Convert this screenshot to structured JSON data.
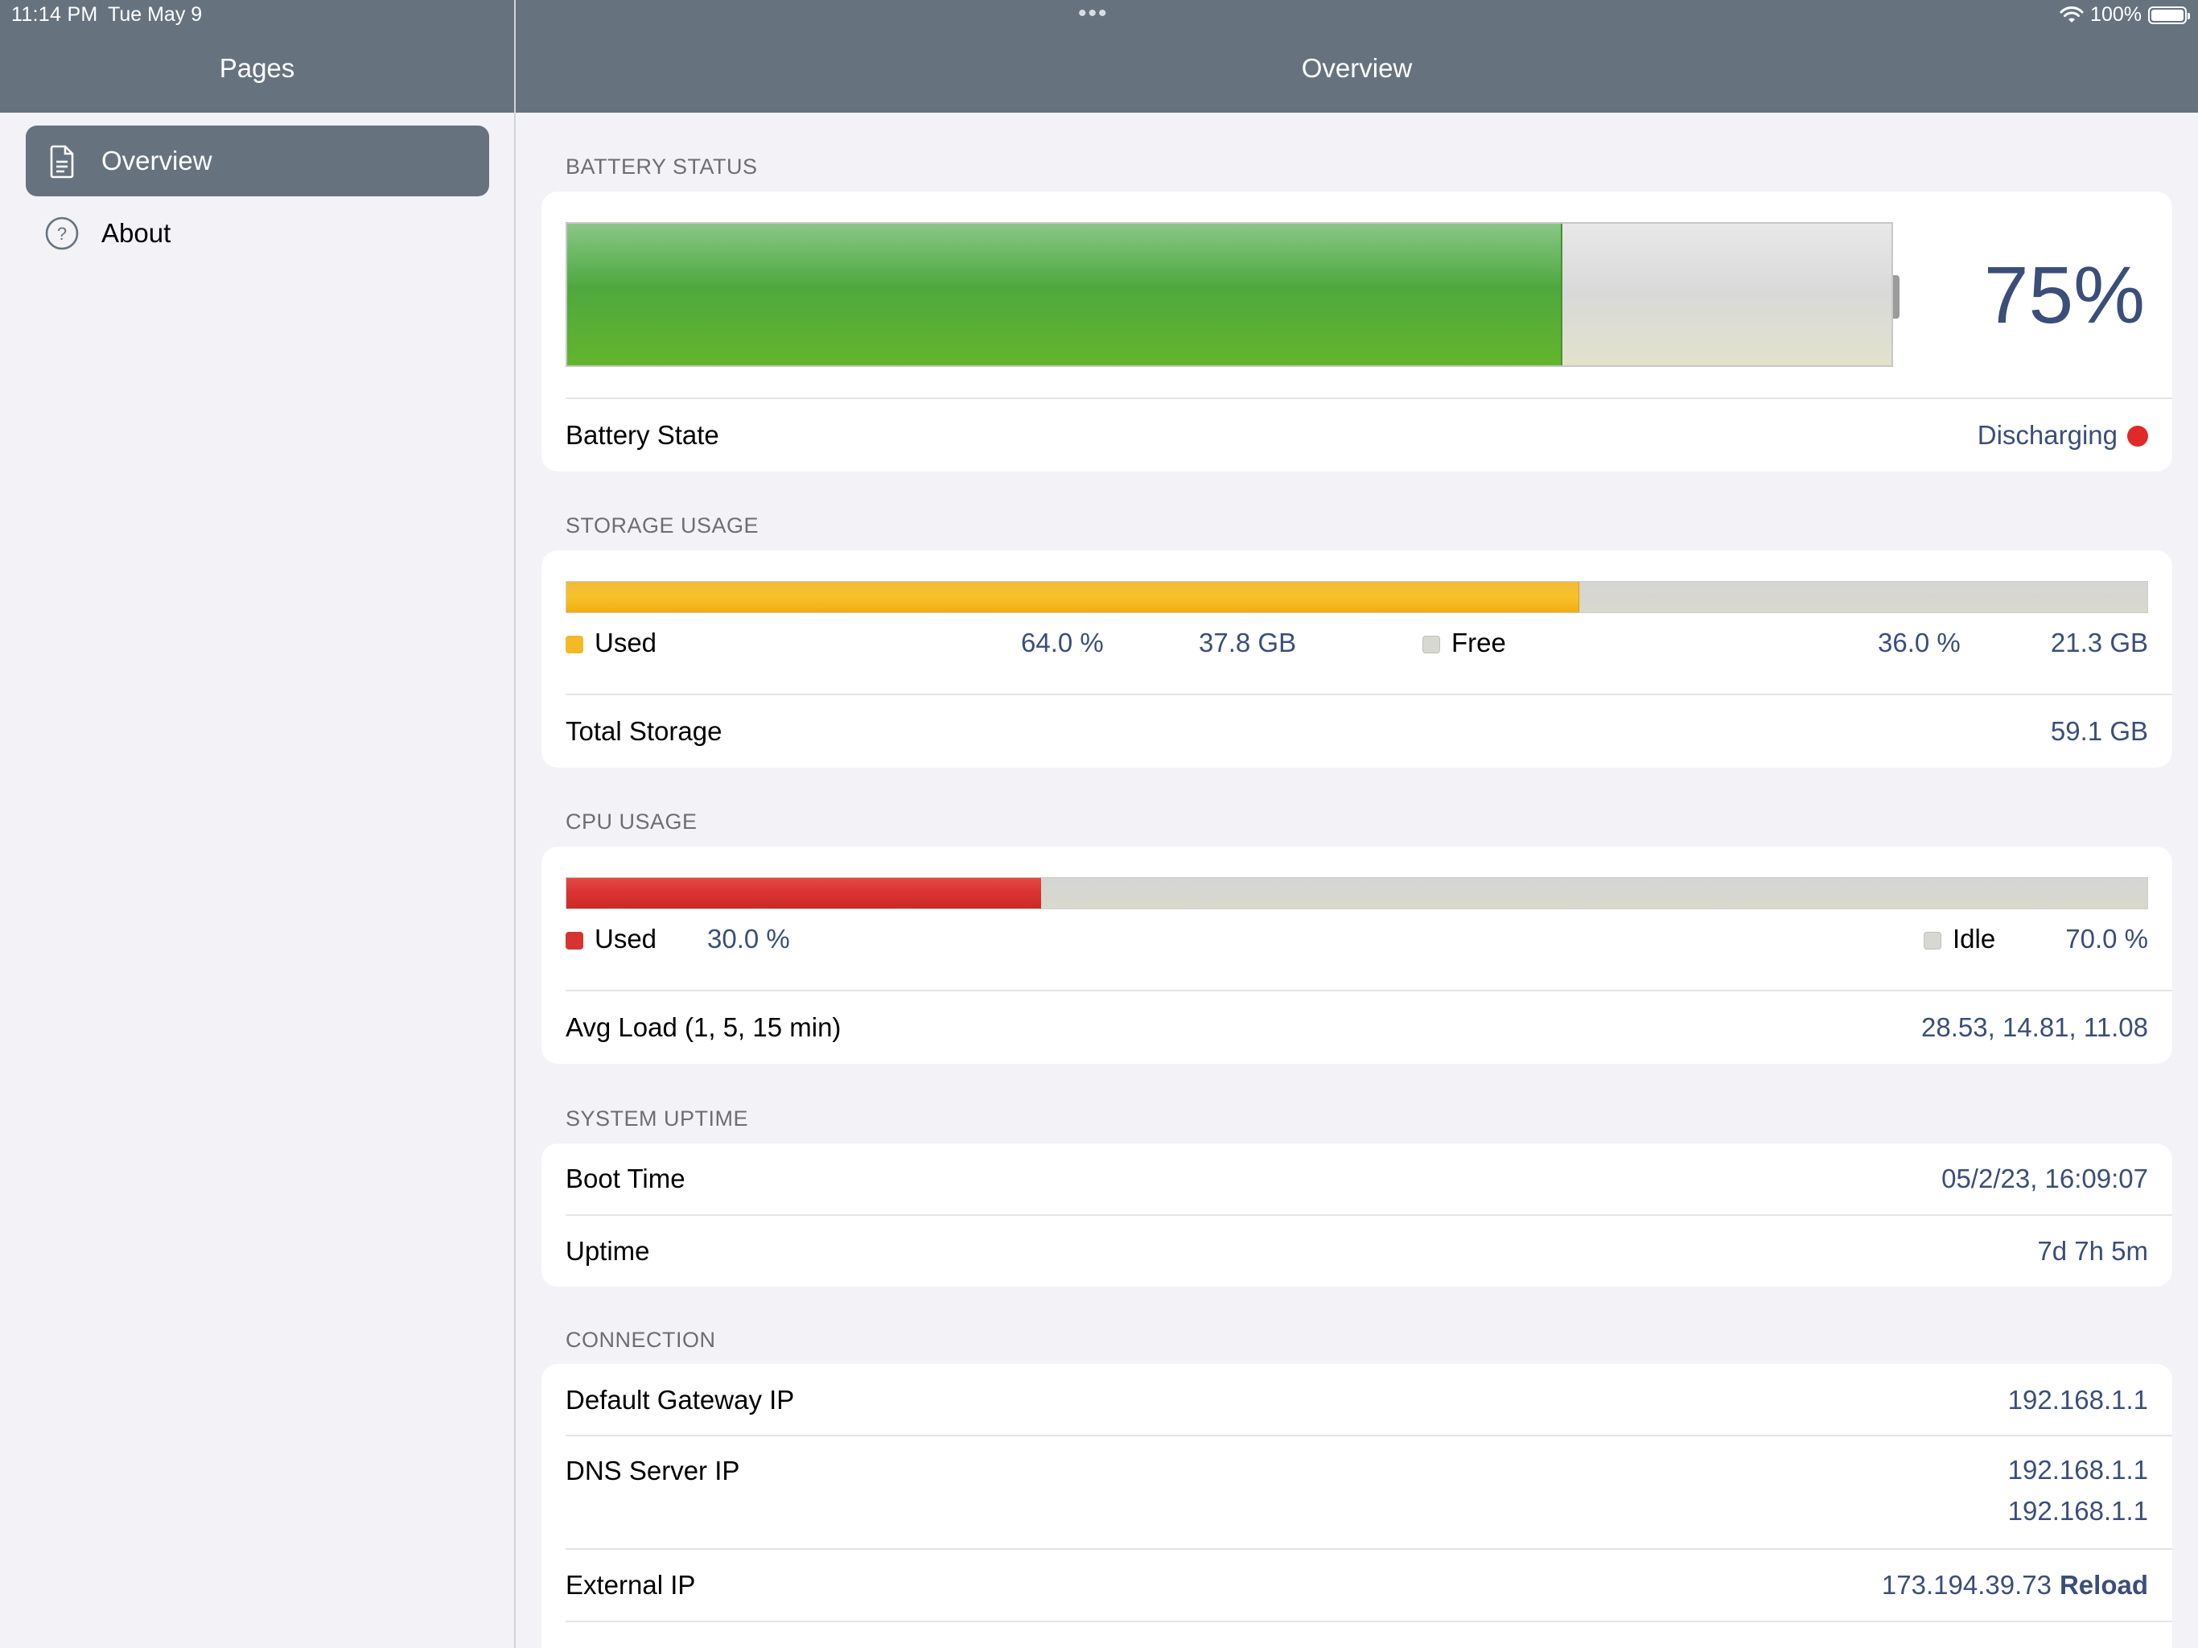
{
  "status_bar": {
    "time": "11:14 PM",
    "date": "Tue May 9",
    "multitask_dots": "•••",
    "battery_percent": "100%",
    "icons": [
      "wifi-icon",
      "battery-icon"
    ]
  },
  "sidebar": {
    "title": "Pages",
    "items": [
      {
        "label": "Overview",
        "icon": "document-icon",
        "selected": true
      },
      {
        "label": "About",
        "icon": "question-circle-icon",
        "selected": false
      }
    ]
  },
  "main": {
    "title": "Overview",
    "battery": {
      "header": "BATTERY STATUS",
      "percent_label": "75%",
      "level": 0.75,
      "state_label": "Battery State",
      "state_value": "Discharging",
      "state_color": "#e02a2a"
    },
    "storage": {
      "header": "STORAGE USAGE",
      "used_fraction": 0.64,
      "used_label": "Used",
      "used_percent": "64.0 %",
      "used_size": "37.8 GB",
      "free_label": "Free",
      "free_percent": "36.0 %",
      "free_size": "21.3 GB",
      "total_label": "Total Storage",
      "total_value": "59.1 GB"
    },
    "cpu": {
      "header": "CPU USAGE",
      "used_fraction": 0.3,
      "used_label": "Used",
      "used_percent": "30.0 %",
      "idle_label": "Idle",
      "idle_percent": "70.0 %",
      "load_label": "Avg Load (1, 5, 15 min)",
      "load_value": "28.53, 14.81, 11.08"
    },
    "uptime": {
      "header": "SYSTEM UPTIME",
      "boot_label": "Boot Time",
      "boot_value": "05/2/23, 16:09:07",
      "uptime_label": "Uptime",
      "uptime_value": "7d 7h 5m"
    },
    "connection": {
      "header": "CONNECTION",
      "gateway_label": "Default Gateway IP",
      "gateway_value": "192.168.1.1",
      "dns_label": "DNS Server IP",
      "dns_values": [
        "192.168.1.1",
        "192.168.1.1"
      ],
      "external_label": "External IP",
      "external_value": "173.194.39.73",
      "reload_label": "Reload"
    }
  },
  "colors": {
    "nav_bar": "#66737f",
    "value_text": "#3b4e7a",
    "storage_used": "#f5b827",
    "cpu_used": "#d83331",
    "battery_fill": "#4ea83f"
  }
}
